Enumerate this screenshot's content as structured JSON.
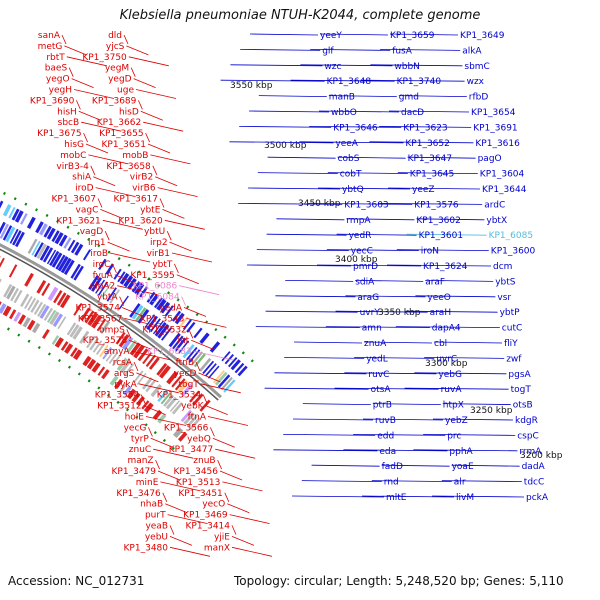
{
  "title": "Klebsiella pneumoniae NTUH-K2044, complete genome",
  "footer": {
    "accession": "Accession: NC_012731",
    "summary": "Topology: circular; Length: 5,248,520 bp; Genes: 5,110"
  },
  "colors": {
    "left_labels": "#dd0000",
    "right_labels": "#0000cc",
    "highlight_labels": "#ee88cc",
    "highlight_cyan": "#55bbdd",
    "backbone": "#999999",
    "forward_features": "#2222dd",
    "reverse_features": "#dd2222",
    "tick_dots": "#118811"
  },
  "ruler": [
    "3550 kbp",
    "3500 kbp",
    "3450 kbp",
    "3400 kbp",
    "3350 kbp",
    "3300 kbp",
    "3250 kbp",
    "3200 kbp"
  ],
  "left_labels": [
    "sanA",
    "dld",
    "metG",
    "yjcS",
    "rbtT",
    "KP1_3750",
    "baeS",
    "yegM",
    "yegO",
    "yegD",
    "yegH",
    "uge",
    "KP1_3690",
    "KP1_3689",
    "hisH",
    "hisD",
    "sbcB",
    "KP1_3662",
    "KP1_3675",
    "KP1_3655",
    "hisG",
    "KP1_3651",
    "mobC",
    "mobB",
    "virB3-4",
    "KP1_3658",
    "shiA",
    "virB2",
    "iroD",
    "virB6",
    "KP1_3607",
    "KP1_3617",
    "vagC",
    "ybtE",
    "KP1_3621",
    "KP1_3620",
    "vagD",
    "ybtU",
    "irp1",
    "irp2",
    "iroB",
    "virB1",
    "iroC",
    "ybtT",
    "fyuA",
    "KP1_3595",
    "alpA2",
    "KP1_6086",
    "ybtA",
    "KP1_6084",
    "KP1_3574",
    "yedA",
    "KP1_3567",
    "KP1_3543",
    "ompS",
    "KP1_3532",
    "KP1_3578",
    "int",
    "amyA",
    "KP1_6083",
    "rcsA",
    "ftnB",
    "argS",
    "yecD",
    "pykA",
    "togT",
    "KP1_3554",
    "KP1_3534",
    "KP1_3512",
    "yebK",
    "holE",
    "ftnA",
    "yecG",
    "KP1_3566",
    "tyrP",
    "yebQ",
    "znuC",
    "KP1_3477",
    "manZ",
    "znuB",
    "KP1_3479",
    "KP1_3456",
    "minE",
    "KP1_3513",
    "KP1_3476",
    "KP1_3451",
    "nhaB",
    "yecO",
    "purT",
    "KP1_3469",
    "yeaB",
    "KP1_3414",
    "yebU",
    "yjiE",
    "KP1_3480",
    "manX"
  ],
  "right_labels": [
    "yeeY",
    "KP1_3659",
    "KP1_3649",
    "glf",
    "fusA",
    "alkA",
    "wzc",
    "wbbN",
    "sbmC",
    "KP1_3648",
    "KP1_3740",
    "wzx",
    "manB",
    "gmd",
    "rfbD",
    "wbbO",
    "dacD",
    "KP1_3654",
    "KP1_3646",
    "KP1_3623",
    "KP1_3691",
    "yeeA",
    "KP1_3652",
    "KP1_3616",
    "cobS",
    "KP1_3647",
    "pagO",
    "cobT",
    "KP1_3645",
    "KP1_3604",
    "ybtQ",
    "yeeZ",
    "KP1_3644",
    "KP1_3603",
    "KP1_3576",
    "ardC",
    "rmpA",
    "KP1_3602",
    "ybtX",
    "yedR",
    "KP1_3601",
    "KP1_6085",
    "yecC",
    "iroN",
    "KP1_3600",
    "pmrD",
    "KP1_3624",
    "dcm",
    "sdiA",
    "araF",
    "ybtS",
    "araG",
    "yeeO",
    "vsr",
    "uvrY",
    "araH",
    "ybtP",
    "amn",
    "dapA4",
    "cutC",
    "znuA",
    "cbl",
    "fliY",
    "yedL",
    "uvrC",
    "zwf",
    "ruvC",
    "yebG",
    "pgsA",
    "otsA",
    "ruvA",
    "togT",
    "ptrB",
    "htpX",
    "otsB",
    "ruvB",
    "yebZ",
    "kdgR",
    "edd",
    "prc",
    "cspC",
    "eda",
    "pphA",
    "rrmA",
    "fadD",
    "yoaE",
    "dadA",
    "rnd",
    "alr",
    "tdcC",
    "mltE",
    "livM",
    "pckA"
  ]
}
